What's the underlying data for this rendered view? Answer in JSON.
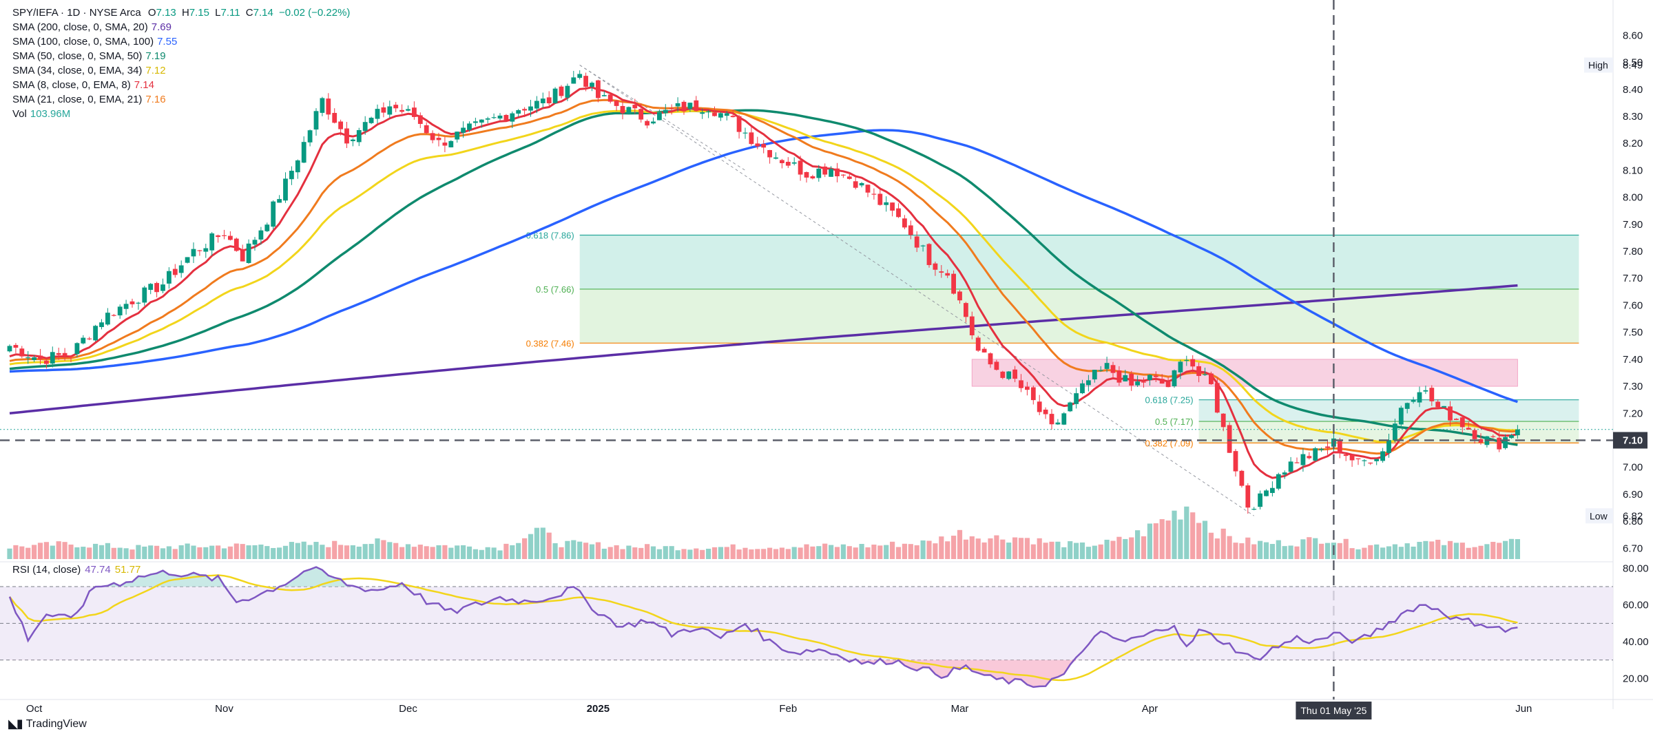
{
  "legend": {
    "title": "SPY/IEFA · 1D · NYSE Arca",
    "o_label": "O",
    "o_value": "7.13",
    "h_label": "H",
    "h_value": "7.15",
    "l_label": "L",
    "l_value": "7.11",
    "c_label": "C",
    "c_value": "7.14",
    "change": "−0.02 (−0.22%)",
    "rows": [
      {
        "label": "SMA (200, close, 0, SMA, 20)",
        "value": "7.69",
        "color": "#5b2ea6"
      },
      {
        "label": "SMA (100, close, 0, SMA, 100)",
        "value": "7.55",
        "color": "#2962ff"
      },
      {
        "label": "SMA (50, close, 0, SMA, 50)",
        "value": "7.19",
        "color": "#0f8a6e"
      },
      {
        "label": "SMA (34, close, 0, EMA, 34)",
        "value": "7.12",
        "color": "#f2d51b"
      },
      {
        "label": "SMA (8, close, 0, EMA, 8)",
        "value": "7.14",
        "color": "#e4303f"
      },
      {
        "label": "SMA (21, close, 0, EMA, 21)",
        "value": "7.16",
        "color": "#f07b1e"
      },
      {
        "label": "Vol",
        "value": "103.96M",
        "color": "#26a69a"
      }
    ]
  },
  "rsi_legend": {
    "label": "RSI (14, close)",
    "rsi_value": "47.74",
    "ma_value": "51.77",
    "rsi_color": "#7e57c2",
    "ma_color": "#f2d51b"
  },
  "footer": {
    "brand": "TradingView"
  },
  "chart_data": {
    "type": "candlestick",
    "title": "SPY/IEFA · 1D · NYSE Arca",
    "ylim": [
      6.66,
      8.68
    ],
    "price_ticks": [
      "8.60",
      "8.50",
      "8.40",
      "8.30",
      "8.20",
      "8.10",
      "8.00",
      "7.90",
      "7.80",
      "7.70",
      "7.60",
      "7.50",
      "7.40",
      "7.30",
      "7.20",
      "7.10",
      "7.00",
      "6.90",
      "6.80",
      "6.70"
    ],
    "x_tick_labels": [
      {
        "label": "Oct",
        "day": 4
      },
      {
        "label": "Nov",
        "day": 35
      },
      {
        "label": "Dec",
        "day": 65
      },
      {
        "label": "2025",
        "day": 96
      },
      {
        "label": "Feb",
        "day": 127
      },
      {
        "label": "Mar",
        "day": 155
      },
      {
        "label": "Apr",
        "day": 186
      },
      {
        "label": "Jun",
        "day": 247
      }
    ],
    "crosshair": {
      "label": "Thu 01 May '25",
      "day": 216,
      "price": "7.10"
    },
    "high_label": {
      "label": "High",
      "value": "8.49"
    },
    "low_label": {
      "label": "Low",
      "value": "6.82"
    },
    "fib_upper": {
      "start_day": 93,
      "end_day": 256,
      "levels": [
        {
          "ratio": "0.618 (7.86)",
          "price": 7.86,
          "color": "#26a69a",
          "fill": "#cdeee8"
        },
        {
          "ratio": "0.5 (7.66)",
          "price": 7.66,
          "color": "#4caf50",
          "fill": "#dff3dc"
        },
        {
          "ratio": "0.382 (7.46)",
          "price": 7.46,
          "color": "#f57c00",
          "fill": ""
        }
      ]
    },
    "fib_lower": {
      "start_day": 194,
      "end_day": 256,
      "levels": [
        {
          "ratio": "0.618 (7.25)",
          "price": 7.25,
          "color": "#26a69a",
          "fill": "#d6f0ec"
        },
        {
          "ratio": "0.5 (7.17)",
          "price": 7.17,
          "color": "#4caf50",
          "fill": "#e3f4df"
        },
        {
          "ratio": "0.382 (7.09)",
          "price": 7.09,
          "color": "#f57c00",
          "fill": ""
        }
      ]
    },
    "pink_zone": {
      "start_day": 157,
      "end_day": 246,
      "top": 7.4,
      "bottom": 7.3,
      "color": "#f8d2e2"
    },
    "trend_lines": [
      {
        "from_day": 93,
        "from_price": 8.49,
        "to_day": 203,
        "to_price": 6.82
      },
      {
        "from_day": 93,
        "from_price": 8.49,
        "to_day": 120,
        "to_price": 8.1
      }
    ],
    "anchors": [
      [
        0,
        7.45
      ],
      [
        5,
        7.4
      ],
      [
        10,
        7.42
      ],
      [
        15,
        7.55
      ],
      [
        20,
        7.62
      ],
      [
        25,
        7.68
      ],
      [
        30,
        7.8
      ],
      [
        35,
        7.87
      ],
      [
        38,
        7.78
      ],
      [
        42,
        7.92
      ],
      [
        45,
        8.05
      ],
      [
        48,
        8.2
      ],
      [
        51,
        8.36
      ],
      [
        55,
        8.22
      ],
      [
        58,
        8.27
      ],
      [
        62,
        8.34
      ],
      [
        66,
        8.3
      ],
      [
        70,
        8.2
      ],
      [
        74,
        8.24
      ],
      [
        78,
        8.28
      ],
      [
        83,
        8.33
      ],
      [
        88,
        8.36
      ],
      [
        91,
        8.42
      ],
      [
        93,
        8.46
      ],
      [
        96,
        8.37
      ],
      [
        100,
        8.33
      ],
      [
        104,
        8.29
      ],
      [
        109,
        8.33
      ],
      [
        114,
        8.34
      ],
      [
        118,
        8.28
      ],
      [
        122,
        8.2
      ],
      [
        126,
        8.14
      ],
      [
        130,
        8.09
      ],
      [
        134,
        8.11
      ],
      [
        138,
        8.06
      ],
      [
        142,
        7.98
      ],
      [
        146,
        7.9
      ],
      [
        150,
        7.77
      ],
      [
        153,
        7.72
      ],
      [
        156,
        7.56
      ],
      [
        158,
        7.43
      ],
      [
        160,
        7.38
      ],
      [
        164,
        7.32
      ],
      [
        167,
        7.24
      ],
      [
        170,
        7.14
      ],
      [
        173,
        7.23
      ],
      [
        176,
        7.32
      ],
      [
        179,
        7.37
      ],
      [
        183,
        7.3
      ],
      [
        186,
        7.33
      ],
      [
        189,
        7.3
      ],
      [
        192,
        7.42
      ],
      [
        194,
        7.34
      ],
      [
        196,
        7.3
      ],
      [
        198,
        7.14
      ],
      [
        200,
        7.0
      ],
      [
        202,
        6.86
      ],
      [
        204,
        6.88
      ],
      [
        207,
        6.98
      ],
      [
        210,
        7.03
      ],
      [
        213,
        7.05
      ],
      [
        216,
        7.09
      ],
      [
        220,
        7.01
      ],
      [
        224,
        7.06
      ],
      [
        227,
        7.22
      ],
      [
        230,
        7.3
      ],
      [
        233,
        7.22
      ],
      [
        236,
        7.18
      ],
      [
        240,
        7.11
      ],
      [
        243,
        7.09
      ],
      [
        246,
        7.15
      ]
    ],
    "vol_anchors": [
      [
        0,
        40
      ],
      [
        10,
        50
      ],
      [
        20,
        38
      ],
      [
        30,
        42
      ],
      [
        40,
        45
      ],
      [
        50,
        48
      ],
      [
        60,
        55
      ],
      [
        70,
        45
      ],
      [
        80,
        38
      ],
      [
        86,
        95
      ],
      [
        90,
        52
      ],
      [
        100,
        42
      ],
      [
        110,
        38
      ],
      [
        120,
        40
      ],
      [
        130,
        42
      ],
      [
        140,
        44
      ],
      [
        150,
        55
      ],
      [
        155,
        85
      ],
      [
        160,
        70
      ],
      [
        165,
        72
      ],
      [
        170,
        52
      ],
      [
        175,
        45
      ],
      [
        180,
        55
      ],
      [
        185,
        90
      ],
      [
        190,
        150
      ],
      [
        192,
        178
      ],
      [
        194,
        150
      ],
      [
        196,
        100
      ],
      [
        200,
        62
      ],
      [
        205,
        52
      ],
      [
        210,
        55
      ],
      [
        215,
        70
      ],
      [
        220,
        42
      ],
      [
        225,
        48
      ],
      [
        230,
        55
      ],
      [
        235,
        50
      ],
      [
        240,
        48
      ],
      [
        246,
        55
      ]
    ],
    "rsi_anchors": [
      [
        0,
        64
      ],
      [
        3,
        42
      ],
      [
        6,
        55
      ],
      [
        10,
        52
      ],
      [
        14,
        70
      ],
      [
        18,
        72
      ],
      [
        22,
        76
      ],
      [
        26,
        78
      ],
      [
        30,
        76
      ],
      [
        34,
        74
      ],
      [
        37,
        62
      ],
      [
        41,
        66
      ],
      [
        45,
        72
      ],
      [
        49,
        80
      ],
      [
        52,
        76
      ],
      [
        56,
        70
      ],
      [
        60,
        68
      ],
      [
        64,
        72
      ],
      [
        68,
        62
      ],
      [
        72,
        56
      ],
      [
        76,
        60
      ],
      [
        80,
        64
      ],
      [
        84,
        62
      ],
      [
        88,
        64
      ],
      [
        92,
        69
      ],
      [
        96,
        56
      ],
      [
        100,
        48
      ],
      [
        104,
        52
      ],
      [
        108,
        44
      ],
      [
        112,
        48
      ],
      [
        116,
        42
      ],
      [
        120,
        50
      ],
      [
        124,
        40
      ],
      [
        128,
        34
      ],
      [
        132,
        36
      ],
      [
        136,
        32
      ],
      [
        140,
        28
      ],
      [
        144,
        30
      ],
      [
        148,
        26
      ],
      [
        152,
        22
      ],
      [
        156,
        26
      ],
      [
        160,
        20
      ],
      [
        164,
        18
      ],
      [
        168,
        16
      ],
      [
        172,
        22
      ],
      [
        174,
        30
      ],
      [
        176,
        40
      ],
      [
        178,
        44
      ],
      [
        182,
        40
      ],
      [
        186,
        44
      ],
      [
        190,
        50
      ],
      [
        192,
        36
      ],
      [
        194,
        46
      ],
      [
        197,
        42
      ],
      [
        200,
        36
      ],
      [
        203,
        30
      ],
      [
        206,
        36
      ],
      [
        210,
        42
      ],
      [
        213,
        40
      ],
      [
        216,
        44
      ],
      [
        220,
        40
      ],
      [
        224,
        48
      ],
      [
        227,
        55
      ],
      [
        230,
        60
      ],
      [
        233,
        58
      ],
      [
        236,
        52
      ],
      [
        240,
        50
      ],
      [
        244,
        46
      ],
      [
        246,
        47.74
      ]
    ],
    "rsi": {
      "ylim": [
        10,
        82
      ],
      "ticks": [
        "80.00",
        "60.00",
        "40.00",
        "20.00"
      ],
      "band_top": 70,
      "band_mid": 50,
      "band_bottom": 30
    }
  }
}
